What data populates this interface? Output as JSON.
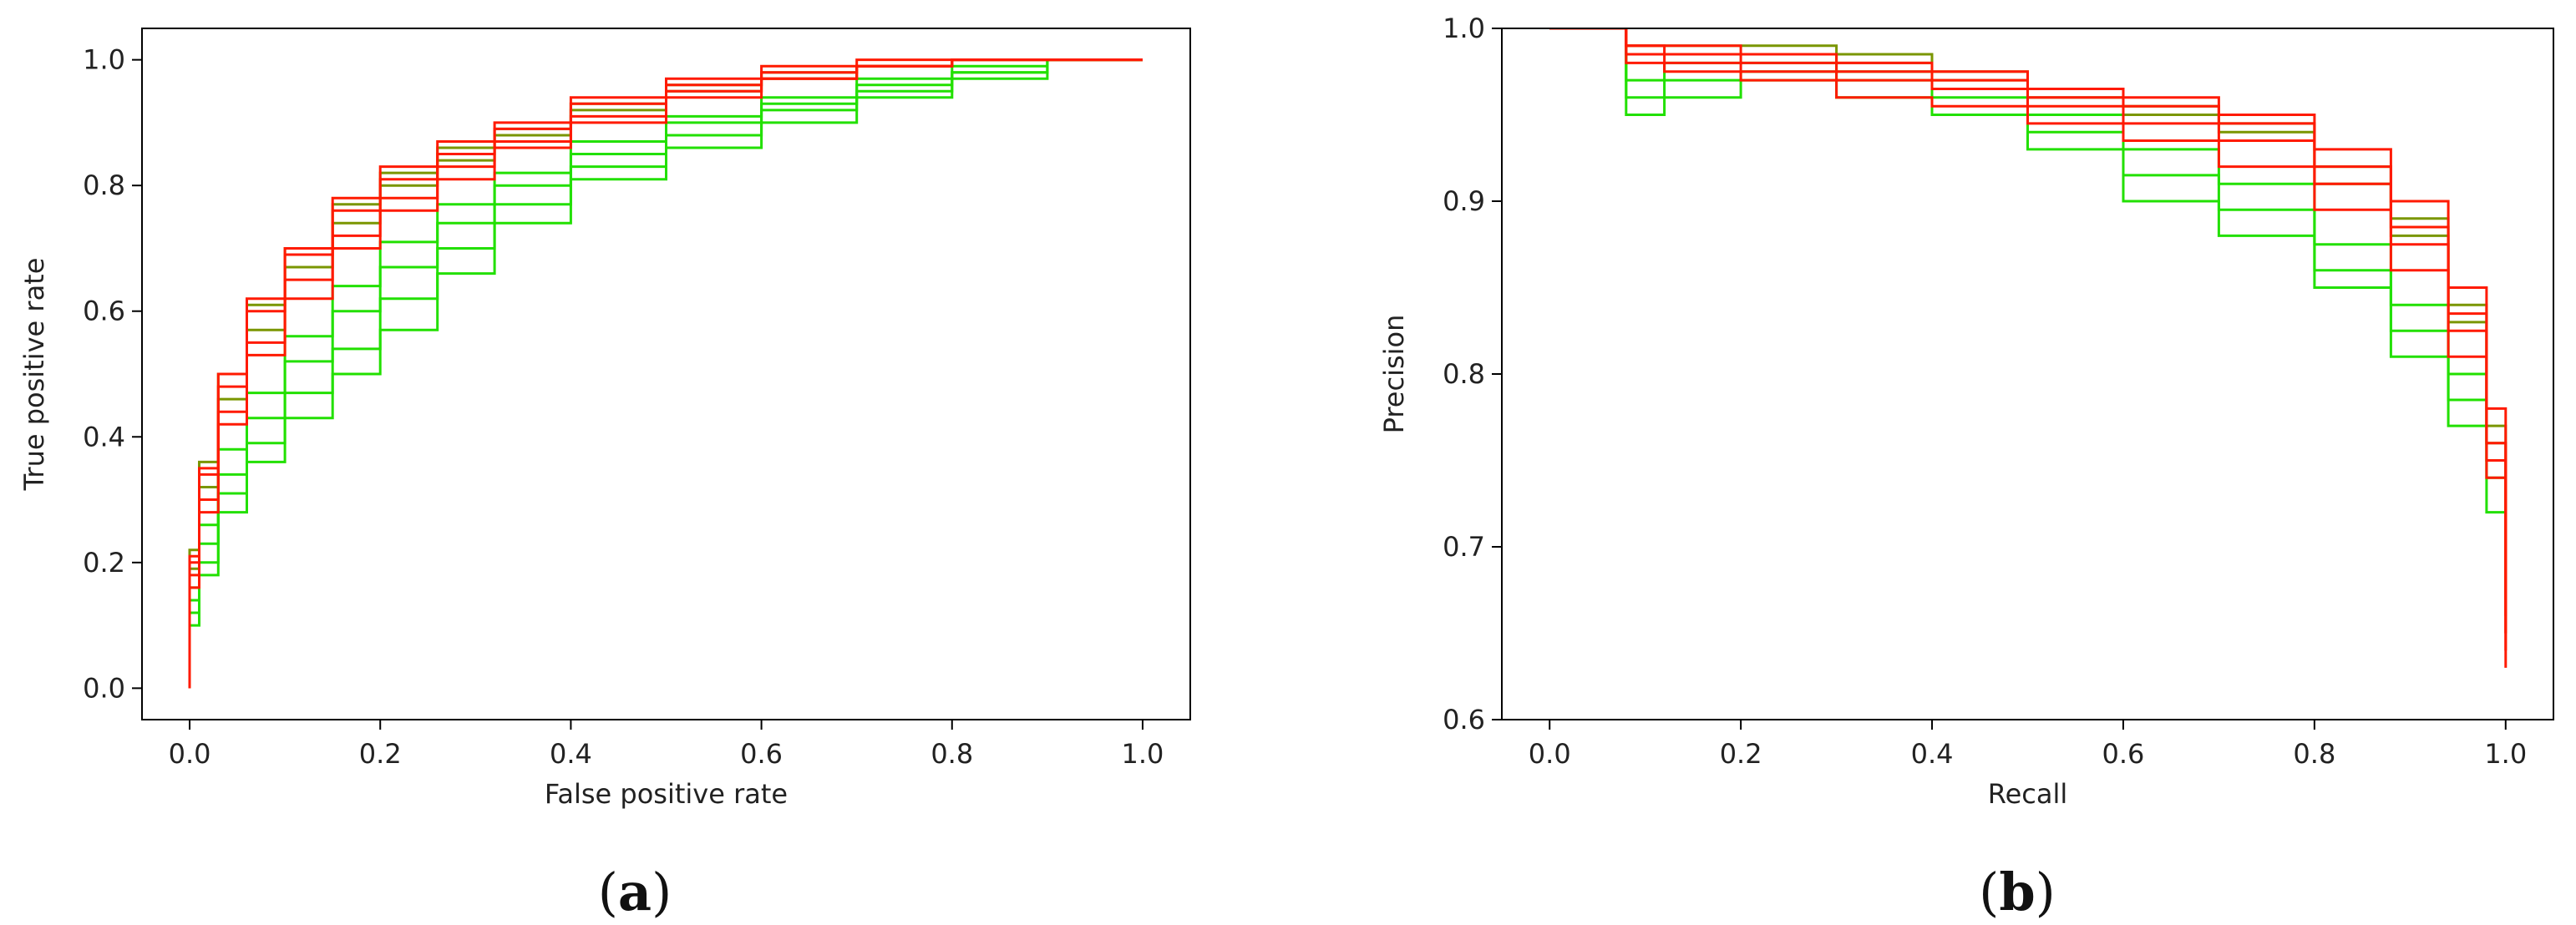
{
  "colors": {
    "green": "#22e000",
    "olive": "#7a9600",
    "red": "#ff1a00"
  },
  "chart_data": [
    {
      "type": "line",
      "panel": "a",
      "panel_label": "a",
      "title": "",
      "xlabel": "False positive rate",
      "ylabel": "True positive rate",
      "xlim": [
        -0.05,
        1.05
      ],
      "ylim": [
        -0.05,
        1.05
      ],
      "xticks": [
        0.0,
        0.2,
        0.4,
        0.6,
        0.8,
        1.0
      ],
      "yticks": [
        0.0,
        0.2,
        0.4,
        0.6,
        0.8,
        1.0
      ],
      "xtick_labels": [
        "0.0",
        "0.2",
        "0.4",
        "0.6",
        "0.8",
        "1.0"
      ],
      "ytick_labels": [
        "0.0",
        "0.2",
        "0.4",
        "0.6",
        "0.8",
        "1.0"
      ],
      "grid": false,
      "legend": "none",
      "series": [
        {
          "color": "green",
          "x": [
            0.0,
            0.01,
            0.03,
            0.06,
            0.1,
            0.15,
            0.2,
            0.26,
            0.32,
            0.4,
            0.5,
            0.6,
            0.7,
            0.8,
            0.9,
            1.0
          ],
          "y": [
            0.0,
            0.1,
            0.18,
            0.28,
            0.36,
            0.43,
            0.5,
            0.57,
            0.66,
            0.74,
            0.81,
            0.86,
            0.9,
            0.94,
            0.97,
            1.0
          ]
        },
        {
          "color": "green",
          "x": [
            0.0,
            0.01,
            0.03,
            0.06,
            0.1,
            0.15,
            0.2,
            0.26,
            0.32,
            0.4,
            0.5,
            0.6,
            0.7,
            0.8,
            0.9,
            1.0
          ],
          "y": [
            0.0,
            0.12,
            0.2,
            0.31,
            0.39,
            0.47,
            0.54,
            0.62,
            0.7,
            0.77,
            0.83,
            0.88,
            0.92,
            0.95,
            0.98,
            1.0
          ]
        },
        {
          "color": "green",
          "x": [
            0.0,
            0.01,
            0.03,
            0.06,
            0.1,
            0.15,
            0.2,
            0.26,
            0.32,
            0.4,
            0.5,
            0.6,
            0.7,
            0.8,
            0.9,
            1.0
          ],
          "y": [
            0.0,
            0.14,
            0.23,
            0.34,
            0.43,
            0.52,
            0.6,
            0.67,
            0.74,
            0.8,
            0.85,
            0.9,
            0.93,
            0.96,
            0.98,
            1.0
          ]
        },
        {
          "color": "green",
          "x": [
            0.0,
            0.01,
            0.03,
            0.06,
            0.1,
            0.15,
            0.2,
            0.26,
            0.32,
            0.4,
            0.5,
            0.6,
            0.7,
            0.8,
            0.9,
            1.0
          ],
          "y": [
            0.0,
            0.16,
            0.26,
            0.38,
            0.47,
            0.56,
            0.64,
            0.71,
            0.77,
            0.82,
            0.87,
            0.91,
            0.94,
            0.97,
            0.99,
            1.0
          ]
        },
        {
          "color": "olive",
          "x": [
            0.0,
            0.01,
            0.03,
            0.06,
            0.1,
            0.15,
            0.2,
            0.26,
            0.32,
            0.4,
            0.5,
            0.6,
            0.7,
            0.8,
            0.9,
            1.0
          ],
          "y": [
            0.0,
            0.22,
            0.36,
            0.5,
            0.61,
            0.7,
            0.77,
            0.82,
            0.86,
            0.89,
            0.93,
            0.96,
            0.98,
            0.99,
            1.0,
            1.0
          ]
        },
        {
          "color": "olive",
          "x": [
            0.0,
            0.01,
            0.03,
            0.06,
            0.1,
            0.15,
            0.2,
            0.26,
            0.32,
            0.4,
            0.5,
            0.6,
            0.7,
            0.8,
            0.9,
            1.0
          ],
          "y": [
            0.0,
            0.19,
            0.32,
            0.46,
            0.57,
            0.67,
            0.74,
            0.8,
            0.84,
            0.88,
            0.92,
            0.95,
            0.97,
            0.99,
            1.0,
            1.0
          ]
        },
        {
          "color": "red",
          "x": [
            0.0,
            0.01,
            0.03,
            0.06,
            0.1,
            0.15,
            0.2,
            0.26,
            0.32,
            0.4,
            0.5,
            0.6,
            0.7,
            0.8,
            0.9,
            1.0
          ],
          "y": [
            0.0,
            0.2,
            0.34,
            0.48,
            0.6,
            0.69,
            0.76,
            0.81,
            0.85,
            0.89,
            0.93,
            0.96,
            0.98,
            0.99,
            1.0,
            1.0
          ]
        },
        {
          "color": "red",
          "x": [
            0.0,
            0.01,
            0.03,
            0.06,
            0.1,
            0.15,
            0.2,
            0.26,
            0.32,
            0.4,
            0.5,
            0.6,
            0.7,
            0.8,
            0.9,
            1.0
          ],
          "y": [
            0.0,
            0.18,
            0.3,
            0.44,
            0.55,
            0.65,
            0.72,
            0.78,
            0.83,
            0.87,
            0.91,
            0.95,
            0.97,
            0.99,
            1.0,
            1.0
          ]
        },
        {
          "color": "red",
          "x": [
            0.0,
            0.01,
            0.03,
            0.06,
            0.1,
            0.15,
            0.2,
            0.26,
            0.32,
            0.4,
            0.5,
            0.6,
            0.7,
            0.8,
            0.9,
            1.0
          ],
          "y": [
            0.0,
            0.16,
            0.28,
            0.42,
            0.53,
            0.62,
            0.7,
            0.76,
            0.81,
            0.86,
            0.9,
            0.94,
            0.97,
            0.99,
            1.0,
            1.0
          ]
        },
        {
          "color": "red",
          "x": [
            0.0,
            0.01,
            0.03,
            0.06,
            0.1,
            0.15,
            0.2,
            0.26,
            0.32,
            0.4,
            0.5,
            0.6,
            0.7,
            0.8,
            0.9,
            1.0
          ],
          "y": [
            0.0,
            0.21,
            0.35,
            0.5,
            0.62,
            0.7,
            0.78,
            0.83,
            0.87,
            0.9,
            0.94,
            0.97,
            0.99,
            1.0,
            1.0,
            1.0
          ]
        }
      ]
    },
    {
      "type": "line",
      "panel": "b",
      "panel_label": "b",
      "title": "",
      "xlabel": "Recall",
      "ylabel": "Precision",
      "xlim": [
        -0.05,
        1.05
      ],
      "ylim": [
        0.6,
        1.0
      ],
      "xticks": [
        0.0,
        0.2,
        0.4,
        0.6,
        0.8,
        1.0
      ],
      "yticks": [
        0.6,
        0.7,
        0.8,
        0.9,
        1.0
      ],
      "xtick_labels": [
        "0.0",
        "0.2",
        "0.4",
        "0.6",
        "0.8",
        "1.0"
      ],
      "ytick_labels": [
        "0.6",
        "0.7",
        "0.8",
        "0.9",
        "1.0"
      ],
      "grid": false,
      "legend": "none",
      "series": [
        {
          "color": "green",
          "x": [
            0.0,
            0.05,
            0.08,
            0.12,
            0.2,
            0.3,
            0.4,
            0.5,
            0.6,
            0.7,
            0.8,
            0.88,
            0.94,
            0.98,
            1.0
          ],
          "y": [
            1.0,
            1.0,
            0.95,
            0.96,
            0.97,
            0.96,
            0.95,
            0.93,
            0.9,
            0.88,
            0.85,
            0.81,
            0.77,
            0.72,
            0.67
          ]
        },
        {
          "color": "green",
          "x": [
            0.0,
            0.05,
            0.08,
            0.12,
            0.2,
            0.3,
            0.4,
            0.5,
            0.6,
            0.7,
            0.8,
            0.88,
            0.94,
            0.98,
            1.0
          ],
          "y": [
            1.0,
            1.0,
            0.96,
            0.97,
            0.975,
            0.97,
            0.96,
            0.94,
            0.915,
            0.895,
            0.86,
            0.825,
            0.785,
            0.74,
            0.68
          ]
        },
        {
          "color": "green",
          "x": [
            0.0,
            0.05,
            0.08,
            0.12,
            0.2,
            0.3,
            0.4,
            0.5,
            0.6,
            0.7,
            0.8,
            0.88,
            0.94,
            0.98,
            1.0
          ],
          "y": [
            1.0,
            1.0,
            0.97,
            0.98,
            0.98,
            0.975,
            0.965,
            0.95,
            0.93,
            0.91,
            0.875,
            0.84,
            0.8,
            0.75,
            0.69
          ]
        },
        {
          "color": "olive",
          "x": [
            0.0,
            0.05,
            0.08,
            0.12,
            0.2,
            0.3,
            0.4,
            0.5,
            0.6,
            0.7,
            0.8,
            0.88,
            0.94,
            0.98,
            1.0
          ],
          "y": [
            1.0,
            1.0,
            0.99,
            0.99,
            0.99,
            0.985,
            0.975,
            0.965,
            0.955,
            0.945,
            0.92,
            0.89,
            0.84,
            0.77,
            0.65
          ]
        },
        {
          "color": "olive",
          "x": [
            0.0,
            0.05,
            0.08,
            0.12,
            0.2,
            0.3,
            0.4,
            0.5,
            0.6,
            0.7,
            0.8,
            0.88,
            0.94,
            0.98,
            1.0
          ],
          "y": [
            1.0,
            1.0,
            0.985,
            0.985,
            0.985,
            0.98,
            0.97,
            0.96,
            0.95,
            0.94,
            0.91,
            0.88,
            0.83,
            0.76,
            0.66
          ]
        },
        {
          "color": "red",
          "x": [
            0.0,
            0.05,
            0.08,
            0.12,
            0.2,
            0.3,
            0.4,
            0.5,
            0.6,
            0.7,
            0.8,
            0.88,
            0.94,
            0.98,
            1.0
          ],
          "y": [
            1.0,
            1.0,
            0.99,
            0.985,
            0.98,
            0.975,
            0.97,
            0.96,
            0.955,
            0.945,
            0.92,
            0.885,
            0.835,
            0.76,
            0.64
          ]
        },
        {
          "color": "red",
          "x": [
            0.0,
            0.05,
            0.08,
            0.12,
            0.2,
            0.3,
            0.4,
            0.5,
            0.6,
            0.7,
            0.8,
            0.88,
            0.94,
            0.98,
            1.0
          ],
          "y": [
            1.0,
            1.0,
            0.985,
            0.98,
            0.975,
            0.97,
            0.965,
            0.955,
            0.945,
            0.935,
            0.91,
            0.875,
            0.825,
            0.75,
            0.65
          ]
        },
        {
          "color": "red",
          "x": [
            0.0,
            0.05,
            0.08,
            0.12,
            0.2,
            0.3,
            0.4,
            0.5,
            0.6,
            0.7,
            0.8,
            0.88,
            0.94,
            0.98,
            1.0
          ],
          "y": [
            1.0,
            1.0,
            0.98,
            0.975,
            0.97,
            0.96,
            0.955,
            0.945,
            0.935,
            0.92,
            0.895,
            0.86,
            0.81,
            0.74,
            0.63
          ]
        },
        {
          "color": "red",
          "x": [
            0.0,
            0.05,
            0.08,
            0.12,
            0.2,
            0.3,
            0.4,
            0.5,
            0.6,
            0.7,
            0.8,
            0.88,
            0.94,
            0.98,
            1.0
          ],
          "y": [
            1.0,
            1.0,
            0.99,
            0.99,
            0.985,
            0.98,
            0.975,
            0.965,
            0.96,
            0.95,
            0.93,
            0.9,
            0.85,
            0.78,
            0.66
          ]
        }
      ]
    }
  ]
}
